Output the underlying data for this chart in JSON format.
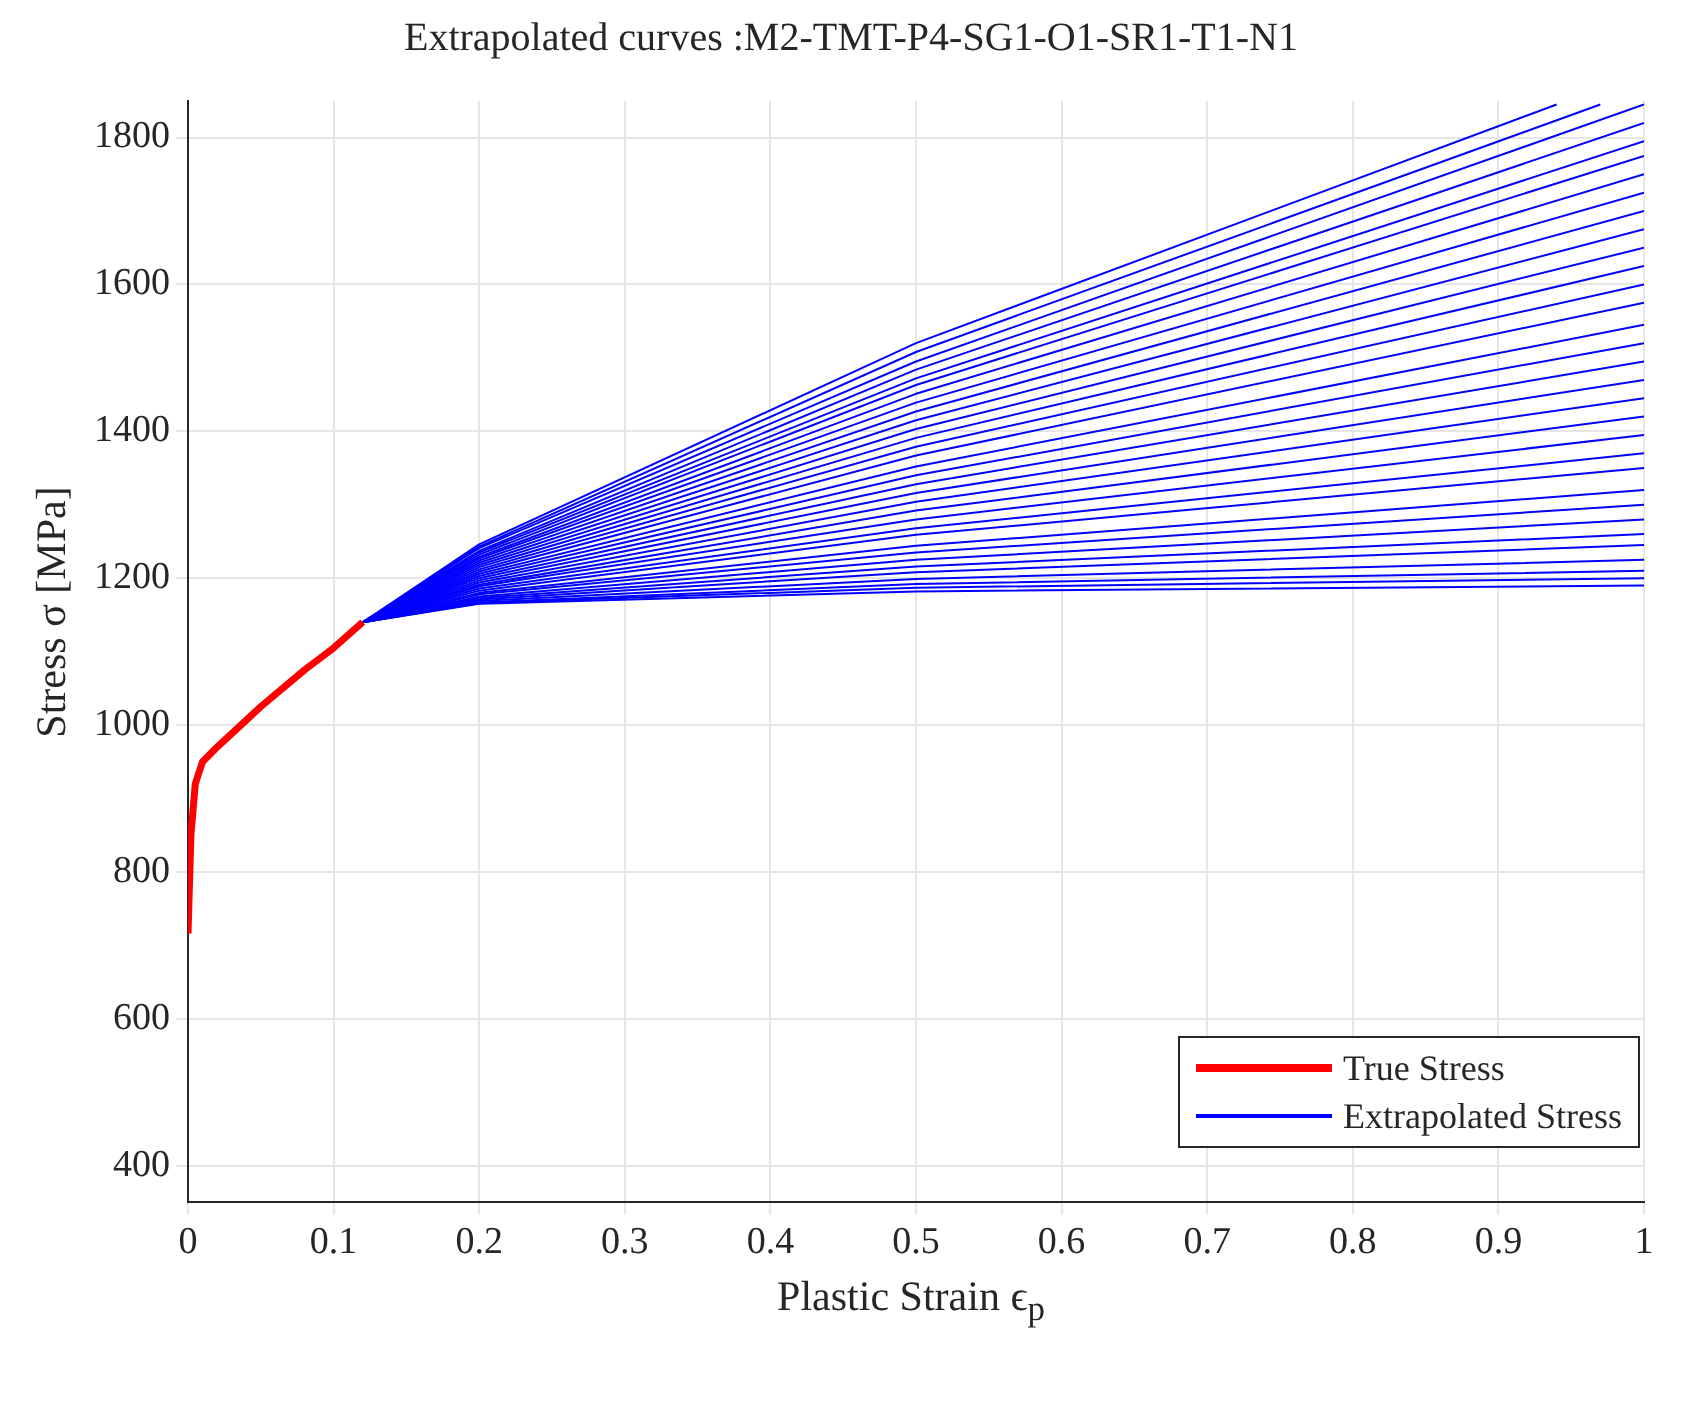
{
  "chart_data": {
    "type": "line",
    "title": "Extrapolated curves :M2-TMT-P4-SG1-O1-SR1-T1-N1",
    "xlabel": "Plastic Strain ϵ$_{p}$",
    "ylabel": "Stress σ [MPa]",
    "x": [
      0.12,
      0.2,
      0.5,
      1
    ],
    "series": [
      {
        "name": "True Stress",
        "color": "#ff0000",
        "x": [
          0,
          0.002,
          0.005,
          0.01,
          0.02,
          0.05,
          0.08,
          0.1,
          0.12
        ],
        "values": [
          716,
          850,
          920,
          950,
          970,
          1025,
          1075,
          1105,
          1140
        ]
      },
      {
        "name": "Extrapolated Stress",
        "color": "#0000ff",
        "x": [
          0.12,
          0.2,
          0.5,
          0.94
        ],
        "values": [
          1140,
          1246,
          1520,
          1845
        ]
      },
      {
        "color": "#0000ff",
        "x": [
          0.12,
          0.2,
          0.5,
          0.97
        ],
        "values": [
          1140,
          1243,
          1508,
          1845
        ]
      },
      {
        "color": "#0000ff",
        "values": [
          1140,
          1241,
          1495,
          1845
        ]
      },
      {
        "color": "#0000ff",
        "values": [
          1140,
          1237,
          1484,
          1820
        ]
      },
      {
        "color": "#0000ff",
        "values": [
          1140,
          1235,
          1472,
          1795
        ]
      },
      {
        "color": "#0000ff",
        "values": [
          1140,
          1232,
          1463,
          1775
        ]
      },
      {
        "color": "#0000ff",
        "values": [
          1140,
          1229,
          1451,
          1750
        ]
      },
      {
        "color": "#0000ff",
        "values": [
          1140,
          1227,
          1439,
          1725
        ]
      },
      {
        "color": "#0000ff",
        "values": [
          1140,
          1224,
          1427,
          1700
        ]
      },
      {
        "color": "#0000ff",
        "values": [
          1140,
          1221,
          1415,
          1675
        ]
      },
      {
        "color": "#0000ff",
        "values": [
          1140,
          1218,
          1403,
          1650
        ]
      },
      {
        "color": "#0000ff",
        "values": [
          1140,
          1215,
          1391,
          1625
        ]
      },
      {
        "color": "#0000ff",
        "values": [
          1140,
          1212,
          1379,
          1600
        ]
      },
      {
        "color": "#0000ff",
        "values": [
          1140,
          1209,
          1367,
          1575
        ]
      },
      {
        "color": "#0000ff",
        "values": [
          1140,
          1206,
          1352,
          1545
        ]
      },
      {
        "color": "#0000ff",
        "values": [
          1140,
          1203,
          1340,
          1520
        ]
      },
      {
        "color": "#0000ff",
        "values": [
          1140,
          1200,
          1328,
          1495
        ]
      },
      {
        "color": "#0000ff",
        "values": [
          1140,
          1197,
          1316,
          1470
        ]
      },
      {
        "color": "#0000ff",
        "values": [
          1140,
          1194,
          1304,
          1445
        ]
      },
      {
        "color": "#0000ff",
        "values": [
          1140,
          1191,
          1292,
          1420
        ]
      },
      {
        "color": "#0000ff",
        "values": [
          1140,
          1189,
          1280,
          1395
        ]
      },
      {
        "color": "#0000ff",
        "values": [
          1140,
          1186,
          1268,
          1370
        ]
      },
      {
        "color": "#0000ff",
        "values": [
          1140,
          1183,
          1259,
          1350
        ]
      },
      {
        "color": "#0000ff",
        "values": [
          1140,
          1180,
          1244,
          1320
        ]
      },
      {
        "color": "#0000ff",
        "values": [
          1140,
          1178,
          1235,
          1300
        ]
      },
      {
        "color": "#0000ff",
        "values": [
          1140,
          1175,
          1225,
          1280
        ]
      },
      {
        "color": "#0000ff",
        "values": [
          1140,
          1173,
          1216,
          1260
        ]
      },
      {
        "color": "#0000ff",
        "values": [
          1140,
          1171,
          1208,
          1245
        ]
      },
      {
        "color": "#0000ff",
        "values": [
          1140,
          1169,
          1199,
          1225
        ]
      },
      {
        "color": "#0000ff",
        "values": [
          1140,
          1167,
          1192,
          1210
        ]
      },
      {
        "color": "#0000ff",
        "values": [
          1140,
          1166,
          1187,
          1200
        ]
      },
      {
        "color": "#0000ff",
        "values": [
          1140,
          1165,
          1182,
          1190
        ]
      }
    ],
    "xlim": [
      0,
      1
    ],
    "xticks": [
      0,
      0.1,
      0.2,
      0.3,
      0.4,
      0.5,
      0.6,
      0.7,
      0.8,
      0.9,
      1
    ],
    "ylim": [
      350,
      1850
    ],
    "yticks": [
      400,
      600,
      800,
      1000,
      1200,
      1400,
      1600,
      1800
    ],
    "grid": true,
    "legend": "bottom right"
  }
}
